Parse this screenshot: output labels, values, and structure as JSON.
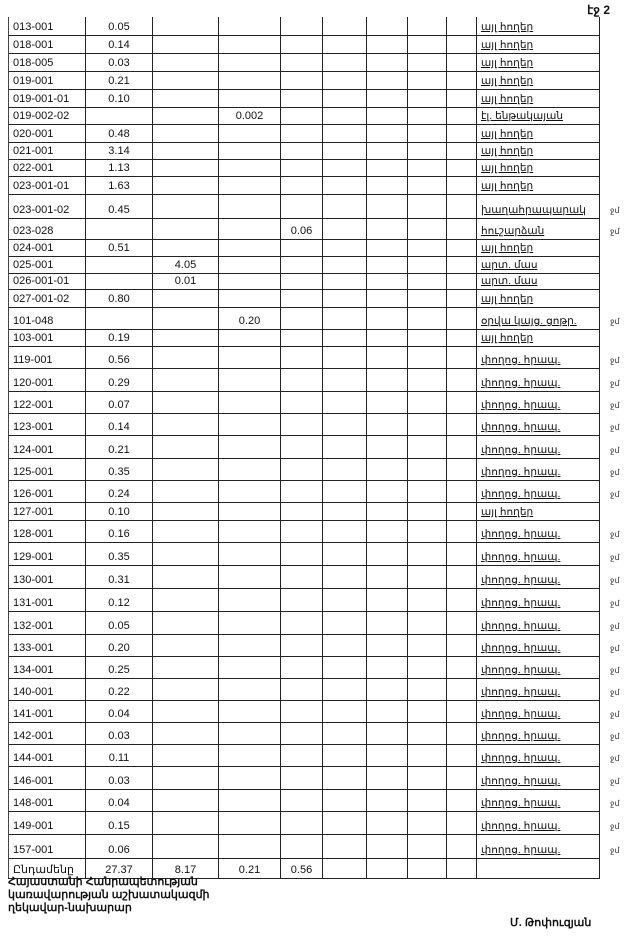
{
  "page_label": "էջ 2",
  "rows": [
    {
      "code": "013-001",
      "vals": [
        "0.05",
        "",
        "",
        "",
        "",
        "",
        "",
        ""
      ],
      "desc": "այլ հողեր",
      "mark": ""
    },
    {
      "code": "018-001",
      "vals": [
        "0.14",
        "",
        "",
        "",
        "",
        "",
        "",
        ""
      ],
      "desc": "այլ հողեր",
      "mark": ""
    },
    {
      "code": "018-005",
      "vals": [
        "0.03",
        "",
        "",
        "",
        "",
        "",
        "",
        ""
      ],
      "desc": "այլ հողեր",
      "mark": ""
    },
    {
      "code": "019-001",
      "vals": [
        "0.21",
        "",
        "",
        "",
        "",
        "",
        "",
        ""
      ],
      "desc": "այլ հողեր",
      "mark": ""
    },
    {
      "code": "019-001-01",
      "vals": [
        "0.10",
        "",
        "",
        "",
        "",
        "",
        "",
        ""
      ],
      "desc": "այլ հողեր",
      "mark": ""
    },
    {
      "code": "019-002-02",
      "vals": [
        "",
        "",
        "0.002",
        "",
        "",
        "",
        "",
        ""
      ],
      "desc": "էլ. ենթակայան",
      "mark": ""
    },
    {
      "code": "020-001",
      "vals": [
        "0.48",
        "",
        "",
        "",
        "",
        "",
        "",
        ""
      ],
      "desc": "այլ հողեր",
      "mark": ""
    },
    {
      "code": "021-001",
      "vals": [
        "3.14",
        "",
        "",
        "",
        "",
        "",
        "",
        ""
      ],
      "desc": "այլ հողեր",
      "mark": ""
    },
    {
      "code": "022-001",
      "vals": [
        "1.13",
        "",
        "",
        "",
        "",
        "",
        "",
        ""
      ],
      "desc": "այլ հողեր",
      "mark": ""
    },
    {
      "code": "023-001-01",
      "vals": [
        "1.63",
        "",
        "",
        "",
        "",
        "",
        "",
        ""
      ],
      "desc": "այլ հողեր",
      "mark": ""
    },
    {
      "code": "023-001-02",
      "vals": [
        "0.45",
        "",
        "",
        "",
        "",
        "",
        "",
        ""
      ],
      "desc": "խաղահրապարակ",
      "mark": "ջմ"
    },
    {
      "code": "023-028",
      "vals": [
        "",
        "",
        "",
        "0.06",
        "",
        "",
        "",
        ""
      ],
      "desc": "հուշարձան",
      "mark": "ջմ"
    },
    {
      "code": "024-001",
      "vals": [
        "0.51",
        "",
        "",
        "",
        "",
        "",
        "",
        ""
      ],
      "desc": "այլ հողեր",
      "mark": ""
    },
    {
      "code": "025-001",
      "vals": [
        "",
        "4.05",
        "",
        "",
        "",
        "",
        "",
        ""
      ],
      "desc": "արտ. մաս",
      "mark": ""
    },
    {
      "code": "026-001-01",
      "vals": [
        "",
        "0.01",
        "",
        "",
        "",
        "",
        "",
        ""
      ],
      "desc": "արտ. մաս",
      "mark": ""
    },
    {
      "code": "027-001-02",
      "vals": [
        "0.80",
        "",
        "",
        "",
        "",
        "",
        "",
        ""
      ],
      "desc": "այլ հողեր",
      "mark": ""
    },
    {
      "code": "101-048",
      "vals": [
        "",
        "",
        "0.20",
        "",
        "",
        "",
        "",
        ""
      ],
      "desc": "օրվա կայց. ցոթր.",
      "mark": "ջմ"
    },
    {
      "code": "103-001",
      "vals": [
        "0.19",
        "",
        "",
        "",
        "",
        "",
        "",
        ""
      ],
      "desc": "այլ հողեր",
      "mark": ""
    },
    {
      "code": "119-001",
      "vals": [
        "0.56",
        "",
        "",
        "",
        "",
        "",
        "",
        ""
      ],
      "desc": "փողոց. հրապ.",
      "mark": "ջմ"
    },
    {
      "code": "120-001",
      "vals": [
        "0.29",
        "",
        "",
        "",
        "",
        "",
        "",
        ""
      ],
      "desc": "փողոց. հրապ.",
      "mark": "ջմ"
    },
    {
      "code": "122-001",
      "vals": [
        "0.07",
        "",
        "",
        "",
        "",
        "",
        "",
        ""
      ],
      "desc": "փողոց. հրապ.",
      "mark": "ջմ"
    },
    {
      "code": "123-001",
      "vals": [
        "0.14",
        "",
        "",
        "",
        "",
        "",
        "",
        ""
      ],
      "desc": "փողոց. հրապ.",
      "mark": "ջմ"
    },
    {
      "code": "124-001",
      "vals": [
        "0.21",
        "",
        "",
        "",
        "",
        "",
        "",
        ""
      ],
      "desc": "փողոց. հրապ.",
      "mark": "ջմ"
    },
    {
      "code": "125-001",
      "vals": [
        "0.35",
        "",
        "",
        "",
        "",
        "",
        "",
        ""
      ],
      "desc": "փողոց. հրապ.",
      "mark": "ջմ"
    },
    {
      "code": "126-001",
      "vals": [
        "0.24",
        "",
        "",
        "",
        "",
        "",
        "",
        ""
      ],
      "desc": "փողոց. հրապ.",
      "mark": "ջմ"
    },
    {
      "code": "127-001",
      "vals": [
        "0.10",
        "",
        "",
        "",
        "",
        "",
        "",
        ""
      ],
      "desc": "այլ հողեր",
      "mark": ""
    },
    {
      "code": "128-001",
      "vals": [
        "0.16",
        "",
        "",
        "",
        "",
        "",
        "",
        ""
      ],
      "desc": "փողոց. հրապ.",
      "mark": "ջմ"
    },
    {
      "code": "129-001",
      "vals": [
        "0.35",
        "",
        "",
        "",
        "",
        "",
        "",
        ""
      ],
      "desc": "փողոց. հրապ.",
      "mark": "ջմ"
    },
    {
      "code": "130-001",
      "vals": [
        "0.31",
        "",
        "",
        "",
        "",
        "",
        "",
        ""
      ],
      "desc": "փողոց. հրապ.",
      "mark": "ջմ"
    },
    {
      "code": "131-001",
      "vals": [
        "0.12",
        "",
        "",
        "",
        "",
        "",
        "",
        ""
      ],
      "desc": "փողոց. հրապ.",
      "mark": "ջմ"
    },
    {
      "code": "132-001",
      "vals": [
        "0.05",
        "",
        "",
        "",
        "",
        "",
        "",
        ""
      ],
      "desc": "փողոց. հրապ.",
      "mark": "ջմ"
    },
    {
      "code": "133-001",
      "vals": [
        "0.20",
        "",
        "",
        "",
        "",
        "",
        "",
        ""
      ],
      "desc": "փողոց. հրապ.",
      "mark": "ջմ"
    },
    {
      "code": "134-001",
      "vals": [
        "0.25",
        "",
        "",
        "",
        "",
        "",
        "",
        ""
      ],
      "desc": "փողոց. հրապ.",
      "mark": "ջմ"
    },
    {
      "code": "140-001",
      "vals": [
        "0.22",
        "",
        "",
        "",
        "",
        "",
        "",
        ""
      ],
      "desc": "փողոց. հրապ.",
      "mark": "ջմ"
    },
    {
      "code": "141-001",
      "vals": [
        "0.04",
        "",
        "",
        "",
        "",
        "",
        "",
        ""
      ],
      "desc": "փողոց. հրապ.",
      "mark": "ջմ"
    },
    {
      "code": "142-001",
      "vals": [
        "0.03",
        "",
        "",
        "",
        "",
        "",
        "",
        ""
      ],
      "desc": "փողոց. հրապ.",
      "mark": "ջմ"
    },
    {
      "code": "144-001",
      "vals": [
        "0.11",
        "",
        "",
        "",
        "",
        "",
        "",
        ""
      ],
      "desc": "փողոց. հրապ.",
      "mark": "ջմ"
    },
    {
      "code": "146-001",
      "vals": [
        "0.03",
        "",
        "",
        "",
        "",
        "",
        "",
        ""
      ],
      "desc": "փողոց. հրապ.",
      "mark": "ջմ"
    },
    {
      "code": "148-001",
      "vals": [
        "0.04",
        "",
        "",
        "",
        "",
        "",
        "",
        ""
      ],
      "desc": "փողոց. հրապ.",
      "mark": "ջմ"
    },
    {
      "code": "149-001",
      "vals": [
        "0.15",
        "",
        "",
        "",
        "",
        "",
        "",
        ""
      ],
      "desc": "փողոց. հրապ.",
      "mark": "ջմ"
    },
    {
      "code": "157-001",
      "vals": [
        "0.06",
        "",
        "",
        "",
        "",
        "",
        "",
        ""
      ],
      "desc": "փողոց. հրապ.",
      "mark": "ջմ"
    }
  ],
  "total": {
    "label": "Ընդամենը",
    "vals": [
      "27.37",
      "8.17",
      "0.21",
      "0.56",
      "",
      "",
      "",
      ""
    ],
    "desc": ""
  },
  "footer": {
    "line1": "Հայաստանի Հանրապետության",
    "line2": "կառավարության աշխատակազմի",
    "line3": "ղեկավար-նախարար",
    "signature": "Մ. Թոփուզյան"
  }
}
